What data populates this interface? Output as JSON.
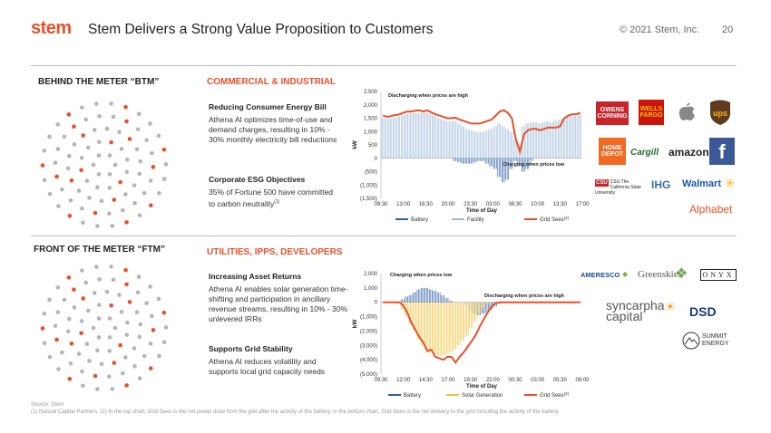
{
  "header": {
    "brand": "stem",
    "title": "Stem Delivers a Strong Value Proposition to Customers",
    "copyright": "© 2021 Stem, Inc.",
    "page": "20"
  },
  "btm": {
    "heading": "BEHIND THE METER “BTM”",
    "subheading": "COMMERCIAL & INDUSTRIAL",
    "block1_title": "Reducing Consumer Energy Bill",
    "block1_body": "Athena AI optimizes time-of-use and demand charges, resulting in 10% - 30% monthly electricity bill reductions",
    "block2_title": "Corporate ESG Objectives",
    "block2_body": "35% of Fortune 500 have committed to carbon neutrality",
    "block2_sup": "(1)"
  },
  "ftm": {
    "heading": "FRONT OF THE METER “FTM”",
    "subheading": "UTILITIES, IPPS, DEVELOPERS",
    "block1_title": "Increasing Asset Returns",
    "block1_body": "Athena AI enables solar generation time-shifting and participation in ancillary revenue streams, resulting in 10% - 30% unlevered IRRs",
    "block2_title": "Supports Grid Stability",
    "block2_body": "Athena AI reduces volatility and supports local grid capacity needs"
  },
  "logos_btm": [
    "OWENS CORNING",
    "WELLS FARGO",
    "Apple",
    "ups",
    "HOME DEPOT",
    "Cargill",
    "amazon",
    "facebook",
    "CSU The California State University",
    "IHG",
    "Walmart",
    "Alphabet"
  ],
  "logos_ftm": [
    "AMERESCO",
    "Greenskies",
    "ONYX",
    "syncarpha capital",
    "DSD",
    "SUMMIT ENERGY"
  ],
  "colors": {
    "accent": "#e8502a",
    "battery": "#2e5ea8",
    "facility": "#9db8d8",
    "solar": "#f0c23a",
    "grid": "#e8502a"
  },
  "footer": {
    "source": "Source: Stem",
    "note": "(1) Natural Capital Partners. (2) In the top chart, Grid Sees is the net power draw from the grid after the activity of the battery; in the bottom chart, Grid Sees is the net delivery to the grid including the activity of the battery."
  },
  "chart_data": [
    {
      "type": "bar",
      "ylabel": "kW",
      "xlabel": "Time of Day",
      "ylim": [
        -1500,
        2500
      ],
      "yticks": [
        "2,500",
        "2,000",
        "1,500",
        "1,000",
        "500",
        "0",
        "(500)",
        "(1,000)",
        "(1,500)"
      ],
      "xticks": [
        "09:30",
        "13:00",
        "16:30",
        "20:00",
        "23:30",
        "03:00",
        "06:30",
        "10:00",
        "13:30",
        "17:00"
      ],
      "annotations": [
        "Discharging when prices are high",
        "Charging when prices low"
      ],
      "legend": [
        "Battery",
        "Facility",
        "Grid Sees"
      ],
      "legend_sup": "(2)",
      "series": [
        {
          "name": "Facility",
          "values": [
            1500,
            1480,
            1500,
            1520,
            1550,
            1600,
            1650,
            1700,
            1700,
            1680,
            1700,
            1720,
            1680,
            1600,
            1500,
            1450,
            1400,
            1380,
            1400,
            1300,
            1200,
            1100,
            1050,
            1000,
            980,
            1000,
            1050,
            1100,
            1200,
            1300,
            1200,
            1100,
            1000,
            700,
            500,
            1200,
            1300,
            1350,
            1350,
            1300,
            1350,
            1400,
            1350,
            1400,
            1450,
            1500,
            1550,
            1600,
            1600,
            1650
          ]
        },
        {
          "name": "Battery",
          "values": [
            0,
            0,
            0,
            0,
            0,
            0,
            0,
            0,
            0,
            0,
            0,
            0,
            0,
            0,
            0,
            0,
            0,
            0,
            -100,
            -150,
            -200,
            -200,
            -200,
            -150,
            -100,
            -100,
            -200,
            -300,
            -400,
            -700,
            -900,
            -800,
            -400,
            -100,
            -300,
            -500,
            -400,
            -100,
            0,
            0,
            0,
            0,
            0,
            0,
            0,
            0,
            0,
            0,
            0,
            0
          ]
        },
        {
          "name": "Grid Sees",
          "values": [
            1600,
            1550,
            1580,
            1620,
            1640,
            1700,
            1750,
            1750,
            1780,
            1800,
            1750,
            1800,
            1720,
            1650,
            1600,
            1550,
            1500,
            1500,
            1520,
            1450,
            1400,
            1350,
            1300,
            1300,
            1300,
            1350,
            1400,
            1450,
            1600,
            1750,
            1800,
            1700,
            1500,
            700,
            250,
            900,
            1050,
            1100,
            1100,
            1050,
            1100,
            1150,
            1150,
            1150,
            1200,
            1500,
            1600,
            1650,
            1650,
            1700
          ]
        }
      ]
    },
    {
      "type": "bar",
      "ylabel": "kW",
      "xlabel": "Time of Day",
      "ylim": [
        -5000,
        2000
      ],
      "yticks": [
        "2,000",
        "1,000",
        "0",
        "(1,000)",
        "(2,000)",
        "(3,000)",
        "(4,000)",
        "(5,000)"
      ],
      "xticks": [
        "09:30",
        "12:00",
        "14:30",
        "17:00",
        "19:30",
        "22:00",
        "00:30",
        "03:00",
        "05:30",
        "08:00"
      ],
      "annotations": [
        "Charging when prices low",
        "Discharging when prices are high"
      ],
      "legend": [
        "Battery",
        "Solar Generation",
        "Grid Sees"
      ],
      "legend_sup": "(2)",
      "series": [
        {
          "name": "Battery",
          "values": [
            0,
            0,
            0,
            0,
            0,
            200,
            400,
            500,
            700,
            900,
            1000,
            1000,
            900,
            800,
            700,
            500,
            300,
            100,
            0,
            0,
            0,
            -300,
            -600,
            -800,
            -900,
            -800,
            -700,
            -500,
            -300,
            -100,
            0,
            0,
            0,
            0,
            0,
            0,
            0,
            0,
            0,
            0,
            0,
            0,
            0,
            0,
            0,
            0,
            0,
            0,
            0,
            0
          ]
        },
        {
          "name": "Solar Generation",
          "values": [
            0,
            0,
            0,
            0,
            0,
            -500,
            -1000,
            -1500,
            -2000,
            -2600,
            -3000,
            -3300,
            -3500,
            -3600,
            -3700,
            -3700,
            -3600,
            -3500,
            -3300,
            -3000,
            -2700,
            -2300,
            -1800,
            -1300,
            -800,
            -400,
            -100,
            0,
            0,
            0,
            0,
            0,
            0,
            0,
            0,
            0,
            0,
            0,
            0,
            0,
            0,
            0,
            0,
            0,
            0,
            0,
            0,
            0,
            0,
            0
          ]
        },
        {
          "name": "Grid Sees",
          "values": [
            0,
            0,
            0,
            0,
            0,
            -200,
            -700,
            -1400,
            -1900,
            -2400,
            -2800,
            -3400,
            -3300,
            -3800,
            -3900,
            -4000,
            -3800,
            -3800,
            -4200,
            -3800,
            -3500,
            -3100,
            -2700,
            -2300,
            -1700,
            -1200,
            -700,
            -300,
            -50,
            0,
            0,
            0,
            0,
            0,
            0,
            0,
            0,
            0,
            0,
            0,
            0,
            0,
            0,
            0,
            0,
            0,
            0,
            0,
            0,
            0
          ]
        }
      ]
    }
  ]
}
